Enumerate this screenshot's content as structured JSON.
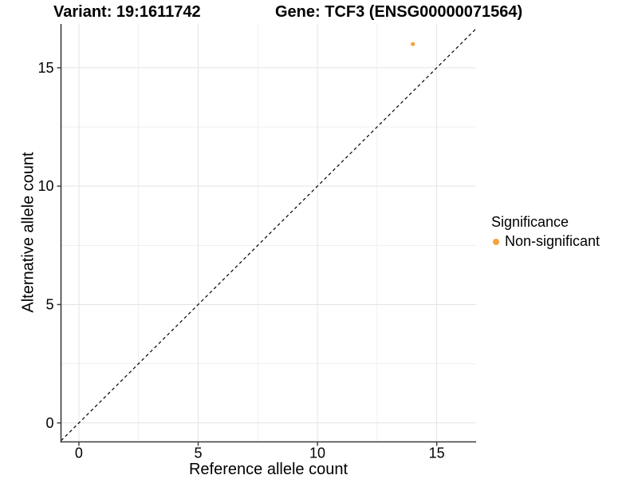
{
  "chart_data": {
    "type": "scatter",
    "titles": {
      "variant": "Variant: 19:1611742",
      "gene": "Gene: TCF3 (ENSG00000071564)"
    },
    "xlabel": "Reference allele count",
    "ylabel": "Alternative allele count",
    "x_range": [
      -0.75,
      16.65
    ],
    "y_range": [
      -0.8,
      16.85
    ],
    "x_ticks": [
      0,
      5,
      10,
      15
    ],
    "y_ticks": [
      0,
      5,
      10,
      15
    ],
    "x_minor_ticks": [
      2.5,
      7.5,
      12.5
    ],
    "y_minor_ticks": [
      2.5,
      7.5,
      12.5
    ],
    "grid": "major and minor gridlines, white panel background",
    "reference_line": {
      "type": "identity y=x",
      "style": "dashed",
      "color": "#000000"
    },
    "series": [
      {
        "name": "Non-significant",
        "color": "#F7A23E",
        "point_radius": 2.6,
        "points": [
          {
            "x": 14,
            "y": 16
          }
        ]
      }
    ],
    "legend": {
      "title": "Significance",
      "position": "right",
      "items": [
        {
          "label": "Non-significant",
          "color": "#F7A23E"
        }
      ]
    },
    "colors": {
      "axis": "#3a3a3a",
      "grid_major": "#e4e4e4",
      "grid_minor": "#efefef",
      "tick_text": "#000000",
      "background": "#ffffff"
    }
  }
}
